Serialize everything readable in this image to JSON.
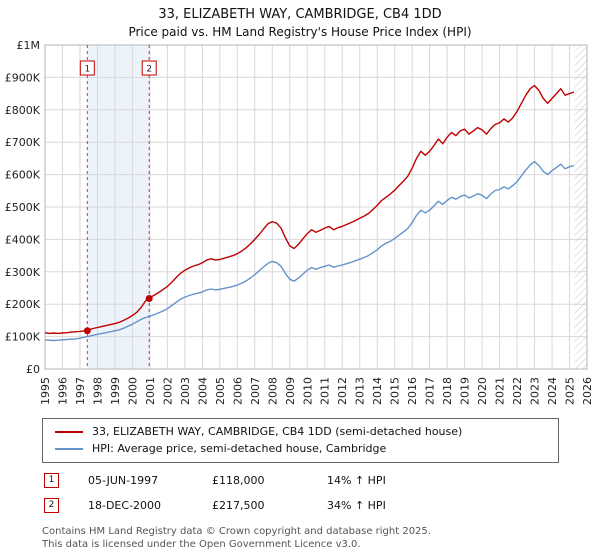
{
  "header": {
    "title": "33, ELIZABETH WAY, CAMBRIDGE, CB4 1DD",
    "subtitle": "Price paid vs. HM Land Registry's House Price Index (HPI)"
  },
  "chart_data": {
    "type": "line",
    "title": "33, ELIZABETH WAY, CAMBRIDGE, CB4 1DD",
    "xlabel": "",
    "ylabel": "",
    "xlim": [
      1995,
      2026
    ],
    "ylim": [
      0,
      1000000
    ],
    "x_start_year": 1995.0,
    "x_step_years": 0.25,
    "y_ticks": [
      {
        "value": 0,
        "label": "£0"
      },
      {
        "value": 100000,
        "label": "£100K"
      },
      {
        "value": 200000,
        "label": "£200K"
      },
      {
        "value": 300000,
        "label": "£300K"
      },
      {
        "value": 400000,
        "label": "£400K"
      },
      {
        "value": 500000,
        "label": "£500K"
      },
      {
        "value": 600000,
        "label": "£600K"
      },
      {
        "value": 700000,
        "label": "£700K"
      },
      {
        "value": 800000,
        "label": "£800K"
      },
      {
        "value": 900000,
        "label": "£900K"
      },
      {
        "value": 1000000,
        "label": "£1M"
      }
    ],
    "series": [
      {
        "name": "33, ELIZABETH WAY, CAMBRIDGE, CB4 1DD (semi-detached house)",
        "color": "#c00000",
        "values_gbp_k": [
          112,
          110,
          111,
          110,
          111,
          112,
          114,
          115,
          116,
          118,
          121,
          125,
          128,
          131,
          134,
          137,
          140,
          144,
          150,
          157,
          165,
          175,
          190,
          210,
          220,
          228,
          236,
          245,
          255,
          268,
          282,
          295,
          305,
          312,
          318,
          322,
          328,
          336,
          340,
          336,
          338,
          342,
          346,
          350,
          356,
          364,
          374,
          386,
          400,
          415,
          432,
          448,
          455,
          450,
          435,
          405,
          380,
          372,
          385,
          402,
          418,
          430,
          422,
          428,
          435,
          440,
          430,
          436,
          440,
          446,
          452,
          458,
          465,
          472,
          480,
          492,
          505,
          520,
          530,
          540,
          552,
          566,
          580,
          595,
          620,
          650,
          672,
          660,
          672,
          690,
          710,
          695,
          715,
          730,
          720,
          735,
          740,
          725,
          735,
          745,
          738,
          725,
          742,
          755,
          760,
          772,
          762,
          775,
          795,
          820,
          845,
          865,
          875,
          860,
          835,
          820,
          835,
          850,
          865,
          845,
          850,
          855
        ]
      },
      {
        "name": "HPI: Average price, semi-detached house, Cambridge",
        "color": "#6593c9",
        "values_gbp_k": [
          90,
          89,
          88,
          89,
          90,
          91,
          92,
          93,
          95,
          98,
          101,
          104,
          107,
          110,
          112,
          115,
          118,
          121,
          126,
          132,
          138,
          146,
          153,
          159,
          163,
          168,
          173,
          179,
          186,
          196,
          206,
          215,
          222,
          227,
          231,
          234,
          238,
          244,
          247,
          244,
          246,
          249,
          252,
          255,
          259,
          265,
          272,
          281,
          291,
          303,
          315,
          326,
          332,
          328,
          317,
          295,
          277,
          271,
          281,
          293,
          305,
          313,
          308,
          313,
          317,
          321,
          314,
          318,
          321,
          325,
          329,
          334,
          339,
          344,
          350,
          359,
          368,
          380,
          388,
          394,
          403,
          413,
          423,
          434,
          452,
          474,
          490,
          482,
          490,
          503,
          518,
          508,
          520,
          530,
          524,
          532,
          537,
          528,
          534,
          541,
          536,
          526,
          540,
          551,
          554,
          562,
          556,
          566,
          578,
          596,
          614,
          630,
          640,
          628,
          610,
          600,
          612,
          622,
          632,
          618,
          624,
          628
        ]
      }
    ],
    "sales": [
      {
        "label": "1",
        "x_year": 1997.42,
        "price_gbp": 118000
      },
      {
        "label": "2",
        "x_year": 2000.96,
        "price_gbp": 217500
      }
    ],
    "shaded_band": [
      1997.42,
      2000.96
    ],
    "hatch_from_year": 2025.3,
    "grid": true,
    "legend_position": "bottom",
    "colors": {
      "accent": "#c00000",
      "grid": "#d8d8d8",
      "band": "#edf3fb",
      "border": "#b5b5b5",
      "hatch": "#c4c4c4"
    }
  },
  "transactions": [
    {
      "num": "1",
      "date": "05-JUN-1997",
      "price": "£118,000",
      "hpi_change": "14% ↑ HPI"
    },
    {
      "num": "2",
      "date": "18-DEC-2000",
      "price": "£217,500",
      "hpi_change": "34% ↑ HPI"
    }
  ],
  "footer": {
    "line1": "Contains HM Land Registry data © Crown copyright and database right 2025.",
    "line2": "This data is licensed under the Open Government Licence v3.0."
  }
}
